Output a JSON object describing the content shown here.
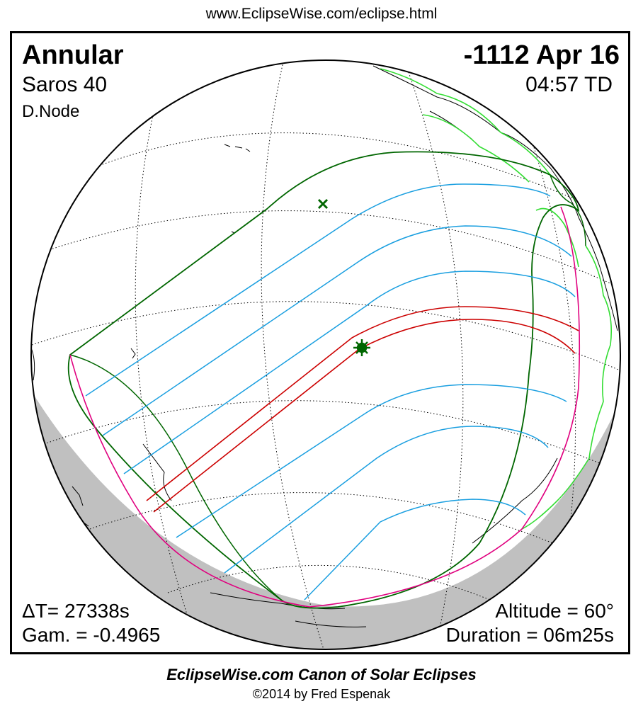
{
  "header": {
    "url": "www.EclipseWise.com/eclipse.html"
  },
  "eclipse": {
    "type": "Annular",
    "date": "-1112 Apr 16",
    "saros": "Saros  40",
    "time": "04:57 TD",
    "node": "D.Node",
    "delta_t": "ΔT=  27338s",
    "gamma": "Gam. = -0.4965",
    "altitude": "Altitude = 60°",
    "duration": "Duration = 06m25s"
  },
  "footer": {
    "credit": "EclipseWise.com Canon of Solar Eclipses",
    "copyright": "©2014 by Fred Espenak"
  },
  "colors": {
    "penumbral_limit": "#006600",
    "magnitude_lines": "#1a9fe0",
    "central_path": "#cc0000",
    "rise_set_curve": "#e0007f",
    "coastline_highlight": "#33dd33",
    "night_side": "#c0c0c0",
    "graticule": "#000000"
  },
  "markers": {
    "greatest_eclipse": "star",
    "subsolar_point": "cross"
  }
}
